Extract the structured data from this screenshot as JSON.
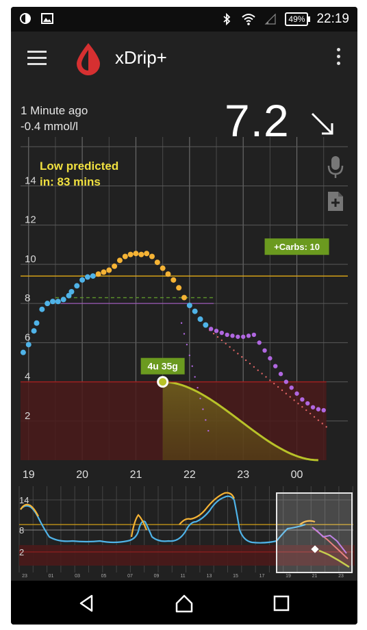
{
  "status_bar": {
    "left_icons": [
      "brightness-icon",
      "image-icon"
    ],
    "right_icons": [
      "bluetooth-icon",
      "wifi-icon",
      "signal-icon"
    ],
    "battery": "49%",
    "time": "22:19"
  },
  "app_bar": {
    "title": "xDrip+",
    "logo": "blood-drop-icon"
  },
  "reading": {
    "ago": "1 Minute ago",
    "delta": "-0.4 mmol/l",
    "value": "7.2",
    "trend": "down-right-arrow"
  },
  "prediction": {
    "line1": "Low predicted",
    "line2": "in: 83 mins"
  },
  "side_buttons": [
    "microphone-icon",
    "add-note-icon"
  ],
  "colors": {
    "background": "#212121",
    "in_range": "#f5b335",
    "reading_low_side": "#4fb3e8",
    "prediction": "#b067e0",
    "target_line": "#d4a017",
    "low_zone": "#4a1a1a",
    "insulin_curve": "#b8c229",
    "treatment_badge": "#6b9a1f"
  },
  "chart_data": {
    "type": "scatter",
    "title": "",
    "xlabel": "",
    "ylabel": "",
    "x_ticks": [
      "19",
      "20",
      "21",
      "22",
      "23",
      "00"
    ],
    "xlim": [
      18.85,
      24.95
    ],
    "y_ticks": [
      "2",
      "4",
      "6",
      "8",
      "10",
      "12",
      "14"
    ],
    "ylim": [
      0,
      16.5
    ],
    "high_line": 9.4,
    "low_line": 4.0,
    "annotations": [
      {
        "text": "+Carbs: 10",
        "x": 24.0,
        "y": 10.9
      },
      {
        "text": "4u 35g",
        "x": 21.5,
        "y": 4.8
      }
    ],
    "series": [
      {
        "name": "",
        "color": "#4fb3e8",
        "points": [
          [
            18.9,
            5.5
          ],
          [
            19.0,
            5.9
          ],
          [
            19.1,
            6.6
          ],
          [
            19.15,
            7.0
          ],
          [
            19.25,
            7.7
          ],
          [
            19.35,
            8.0
          ],
          [
            19.45,
            8.1
          ],
          [
            19.55,
            8.1
          ],
          [
            19.65,
            8.2
          ],
          [
            19.75,
            8.4
          ],
          [
            19.8,
            8.6
          ],
          [
            19.9,
            8.9
          ],
          [
            20.0,
            9.2
          ],
          [
            20.1,
            9.35
          ],
          [
            20.2,
            9.4
          ],
          [
            22.0,
            7.9
          ],
          [
            22.1,
            7.6
          ],
          [
            22.2,
            7.2
          ],
          [
            22.3,
            6.9
          ]
        ]
      },
      {
        "name": "",
        "color": "#f5b335",
        "points": [
          [
            20.3,
            9.5
          ],
          [
            20.4,
            9.6
          ],
          [
            20.5,
            9.7
          ],
          [
            20.6,
            9.9
          ],
          [
            20.7,
            10.2
          ],
          [
            20.8,
            10.4
          ],
          [
            20.9,
            10.5
          ],
          [
            21.0,
            10.55
          ],
          [
            21.1,
            10.5
          ],
          [
            21.2,
            10.55
          ],
          [
            21.3,
            10.4
          ],
          [
            21.4,
            10.1
          ],
          [
            21.5,
            9.8
          ],
          [
            21.6,
            9.5
          ],
          [
            21.7,
            9.2
          ],
          [
            21.8,
            8.8
          ],
          [
            21.9,
            8.3
          ]
        ]
      },
      {
        "name": "",
        "color": "#b067e0",
        "points": [
          [
            22.4,
            6.7
          ],
          [
            22.5,
            6.6
          ],
          [
            22.6,
            6.5
          ],
          [
            22.7,
            6.4
          ],
          [
            22.8,
            6.35
          ],
          [
            22.9,
            6.3
          ],
          [
            23.0,
            6.3
          ],
          [
            23.1,
            6.35
          ],
          [
            23.2,
            6.4
          ],
          [
            23.3,
            6.0
          ],
          [
            23.4,
            5.6
          ],
          [
            23.5,
            5.2
          ],
          [
            23.6,
            4.8
          ],
          [
            23.7,
            4.4
          ],
          [
            23.8,
            4.0
          ],
          [
            23.9,
            3.7
          ],
          [
            24.0,
            3.4
          ],
          [
            24.1,
            3.1
          ],
          [
            24.2,
            2.9
          ],
          [
            24.3,
            2.7
          ],
          [
            24.4,
            2.6
          ],
          [
            24.5,
            2.55
          ]
        ]
      }
    ]
  },
  "mini_chart_data": {
    "type": "line",
    "y_ticks": [
      "2",
      "8",
      "14"
    ],
    "x_ticks": [
      "23",
      "01",
      "03",
      "05",
      "07",
      "09",
      "11",
      "13",
      "15",
      "17",
      "19",
      "21",
      "23"
    ]
  },
  "nav_bar": {
    "buttons": [
      "back-icon",
      "home-icon",
      "recents-icon"
    ]
  }
}
